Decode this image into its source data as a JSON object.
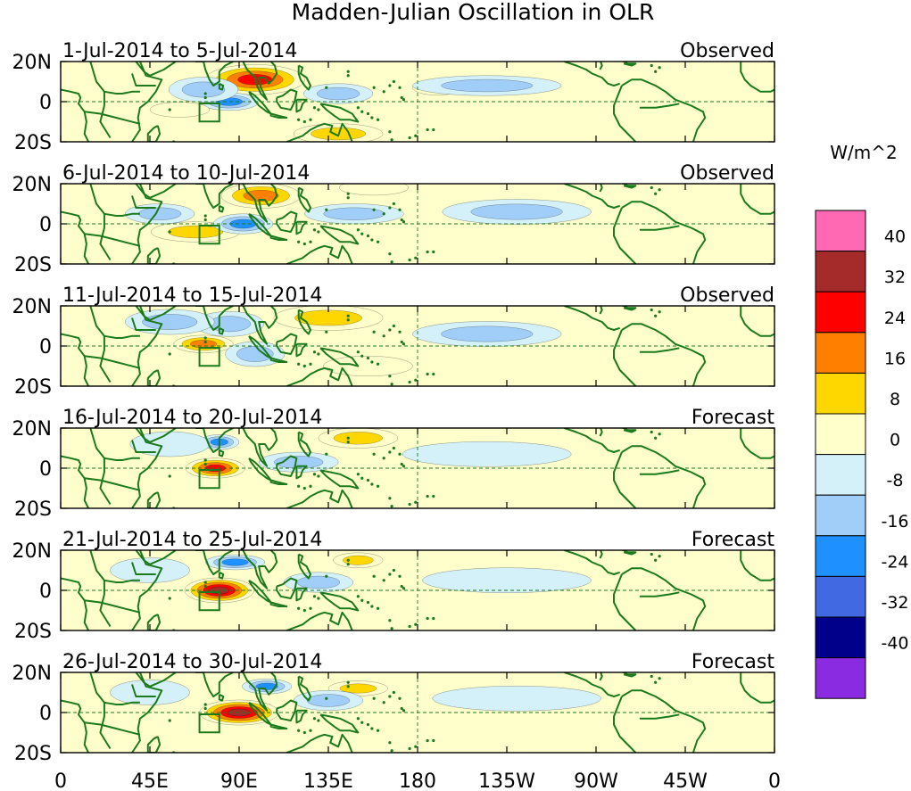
{
  "chart_data": {
    "type": "heatmap",
    "title": "Madden-Julian Oscillation in OLR",
    "units_label": "W/m^2",
    "x_ticks": [
      "0",
      "45E",
      "90E",
      "135E",
      "180",
      "135W",
      "90W",
      "45W",
      "0"
    ],
    "x_tick_values": [
      0,
      45,
      90,
      135,
      180,
      225,
      270,
      315,
      360
    ],
    "y_ticks": [
      "20N",
      "0",
      "20S"
    ],
    "y_tick_values": [
      20,
      0,
      -20
    ],
    "xlim": [
      0,
      360
    ],
    "ylim": [
      -20,
      20
    ],
    "colorbar": {
      "labels": [
        "40",
        "32",
        "24",
        "16",
        "8",
        "0",
        "-8",
        "-16",
        "-24",
        "-32",
        "-40"
      ],
      "colors": [
        "#ff69b4",
        "#a52a2a",
        "#ff0000",
        "#ff7f00",
        "#ffd700",
        "#ffffcc",
        "#d4f0f8",
        "#a0cef8",
        "#1e90ff",
        "#4169e1",
        "#00008b",
        "#8a2be2"
      ]
    },
    "panels": [
      {
        "period": "1-Jul-2014 to 5-Jul-2014",
        "label": "Observed",
        "anomalies": [
          {
            "lon": 98,
            "lat": 11,
            "rx": 20,
            "ry": 6,
            "v": 26
          },
          {
            "lon": 140,
            "lat": -16,
            "rx": 18,
            "ry": 4,
            "v": 10
          },
          {
            "lon": 190,
            "lat": 7,
            "rx": 10,
            "ry": 3,
            "v": 10
          },
          {
            "lon": 85,
            "lat": 0,
            "rx": 12,
            "ry": 3.5,
            "v": -18
          },
          {
            "lon": 72,
            "lat": 6,
            "rx": 14,
            "ry": 5,
            "v": -9
          },
          {
            "lon": 140,
            "lat": 4,
            "rx": 14,
            "ry": 4,
            "v": -9
          },
          {
            "lon": 215,
            "lat": 8,
            "rx": 30,
            "ry": 4,
            "v": -9
          },
          {
            "lon": 60,
            "lat": -4,
            "rx": 12,
            "ry": 3,
            "v": 6
          }
        ]
      },
      {
        "period": "6-Jul-2014 to 10-Jul-2014",
        "label": "Observed",
        "anomalies": [
          {
            "lon": 101,
            "lat": 14,
            "rx": 16,
            "ry": 5,
            "v": 22
          },
          {
            "lon": 68,
            "lat": -4,
            "rx": 18,
            "ry": 4,
            "v": 11
          },
          {
            "lon": 158,
            "lat": 18,
            "rx": 14,
            "ry": 3,
            "v": 8
          },
          {
            "lon": 92,
            "lat": 0,
            "rx": 12,
            "ry": 4,
            "v": -24
          },
          {
            "lon": 50,
            "lat": 5,
            "rx": 14,
            "ry": 4,
            "v": -10
          },
          {
            "lon": 148,
            "lat": 5,
            "rx": 20,
            "ry": 4,
            "v": -9
          },
          {
            "lon": 230,
            "lat": 6,
            "rx": 30,
            "ry": 5,
            "v": -9
          }
        ]
      },
      {
        "period": "11-Jul-2014 to 15-Jul-2014",
        "label": "Observed",
        "anomalies": [
          {
            "lon": 72,
            "lat": 1,
            "rx": 12,
            "ry": 3.5,
            "v": 22
          },
          {
            "lon": 135,
            "lat": 14,
            "rx": 22,
            "ry": 5,
            "v": 10
          },
          {
            "lon": 85,
            "lat": 11,
            "rx": 14,
            "ry": 5,
            "v": -12
          },
          {
            "lon": 98,
            "lat": -4,
            "rx": 12,
            "ry": 5,
            "v": -10
          },
          {
            "lon": 55,
            "lat": 12,
            "rx": 18,
            "ry": 5,
            "v": -10
          },
          {
            "lon": 215,
            "lat": 6,
            "rx": 30,
            "ry": 5,
            "v": -10
          },
          {
            "lon": 155,
            "lat": -10,
            "rx": 18,
            "ry": 4,
            "v": 6
          }
        ]
      },
      {
        "period": "16-Jul-2014 to 20-Jul-2014",
        "label": "Forecast",
        "anomalies": [
          {
            "lon": 78,
            "lat": 0,
            "rx": 12,
            "ry": 4,
            "v": 30
          },
          {
            "lon": 80,
            "lat": 13,
            "rx": 8,
            "ry": 3,
            "v": -20
          },
          {
            "lon": 150,
            "lat": 15,
            "rx": 16,
            "ry": 4,
            "v": 10
          },
          {
            "lon": 120,
            "lat": 3,
            "rx": 16,
            "ry": 4,
            "v": -10
          },
          {
            "lon": 215,
            "lat": 7,
            "rx": 34,
            "ry": 5,
            "v": -8
          },
          {
            "lon": 55,
            "lat": 12,
            "rx": 16,
            "ry": 5,
            "v": -8
          }
        ]
      },
      {
        "period": "21-Jul-2014 to 25-Jul-2014",
        "label": "Forecast",
        "anomalies": [
          {
            "lon": 80,
            "lat": 0,
            "rx": 14,
            "ry": 5,
            "v": 34
          },
          {
            "lon": 150,
            "lat": 15,
            "rx": 10,
            "ry": 3,
            "v": 12
          },
          {
            "lon": 88,
            "lat": 14,
            "rx": 12,
            "ry": 3,
            "v": -18
          },
          {
            "lon": 130,
            "lat": 4,
            "rx": 14,
            "ry": 4,
            "v": -10
          },
          {
            "lon": 225,
            "lat": 5,
            "rx": 34,
            "ry": 5,
            "v": -8
          },
          {
            "lon": 45,
            "lat": 10,
            "rx": 16,
            "ry": 5,
            "v": -8
          }
        ]
      },
      {
        "period": "26-Jul-2014 to 30-Jul-2014",
        "label": "Forecast",
        "anomalies": [
          {
            "lon": 90,
            "lat": 0,
            "rx": 16,
            "ry": 5,
            "v": 34
          },
          {
            "lon": 150,
            "lat": 12,
            "rx": 12,
            "ry": 3,
            "v": 10
          },
          {
            "lon": 104,
            "lat": 13,
            "rx": 10,
            "ry": 3,
            "v": -20
          },
          {
            "lon": 135,
            "lat": 6,
            "rx": 14,
            "ry": 4,
            "v": -10
          },
          {
            "lon": 230,
            "lat": 7,
            "rx": 34,
            "ry": 5,
            "v": -8
          },
          {
            "lon": 45,
            "lat": 10,
            "rx": 16,
            "ry": 5,
            "v": -8
          }
        ]
      }
    ]
  }
}
